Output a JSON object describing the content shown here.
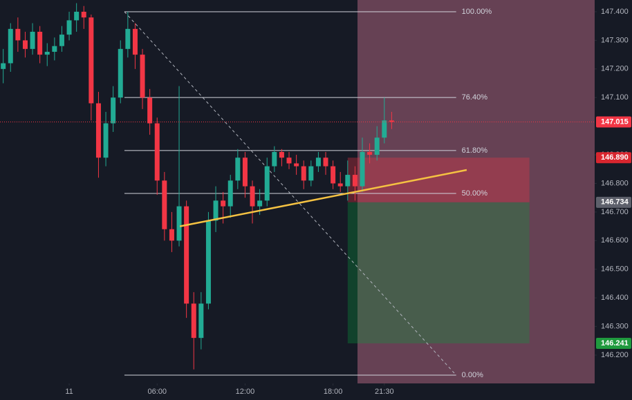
{
  "chart_data": {
    "type": "candlestick",
    "x": [
      -4.5,
      -4,
      -3.5,
      -3,
      -2.5,
      -2,
      -1.5,
      -1,
      -0.5,
      0,
      0.5,
      1,
      1.5,
      2,
      2.5,
      3,
      3.5,
      4,
      4.5,
      5,
      5.5,
      6,
      6.5,
      7,
      7.5,
      8,
      8.5,
      9,
      9.5,
      10,
      10.5,
      11,
      11.5,
      12,
      12.5,
      13,
      13.5,
      14,
      14.5,
      15,
      15.5,
      16,
      16.5,
      17,
      17.5,
      18,
      18.5,
      19,
      19.5,
      20,
      20.5,
      21,
      21.5,
      22
    ],
    "ohlc": [
      [
        147.2,
        147.27,
        147.15,
        147.22
      ],
      [
        147.22,
        147.36,
        147.19,
        147.34
      ],
      [
        147.34,
        147.38,
        147.26,
        147.3
      ],
      [
        147.3,
        147.33,
        147.24,
        147.27
      ],
      [
        147.27,
        147.36,
        147.25,
        147.33
      ],
      [
        147.33,
        147.35,
        147.22,
        147.25
      ],
      [
        147.25,
        147.29,
        147.21,
        147.26
      ],
      [
        147.26,
        147.31,
        147.23,
        147.28
      ],
      [
        147.28,
        147.35,
        147.26,
        147.32
      ],
      [
        147.32,
        147.4,
        147.3,
        147.37
      ],
      [
        147.37,
        147.43,
        147.33,
        147.4
      ],
      [
        147.4,
        147.42,
        147.34,
        147.38
      ],
      [
        147.38,
        147.39,
        147.02,
        147.08
      ],
      [
        147.08,
        147.12,
        146.82,
        146.89
      ],
      [
        146.89,
        147.05,
        146.86,
        147.01
      ],
      [
        147.01,
        147.14,
        146.98,
        147.1
      ],
      [
        147.1,
        147.3,
        147.08,
        147.27
      ],
      [
        147.27,
        147.4,
        147.24,
        147.34
      ],
      [
        147.34,
        147.36,
        147.2,
        147.25
      ],
      [
        147.25,
        147.27,
        147.06,
        147.1
      ],
      [
        147.1,
        147.13,
        146.97,
        147.01
      ],
      [
        147.01,
        147.03,
        146.76,
        146.81
      ],
      [
        146.81,
        146.84,
        146.6,
        146.64
      ],
      [
        146.64,
        146.7,
        146.56,
        146.6
      ],
      [
        146.6,
        147.14,
        146.58,
        146.72
      ],
      [
        146.72,
        146.74,
        146.33,
        146.38
      ],
      [
        146.38,
        146.42,
        146.15,
        146.26
      ],
      [
        146.26,
        146.42,
        146.22,
        146.38
      ],
      [
        146.38,
        146.7,
        146.36,
        146.67
      ],
      [
        146.67,
        146.79,
        146.63,
        146.74
      ],
      [
        146.74,
        146.77,
        146.66,
        146.72
      ],
      [
        146.72,
        146.83,
        146.68,
        146.81
      ],
      [
        146.81,
        146.92,
        146.78,
        146.89
      ],
      [
        146.89,
        146.91,
        146.75,
        146.79
      ],
      [
        146.79,
        146.81,
        146.66,
        146.72
      ],
      [
        146.72,
        146.78,
        146.69,
        146.74
      ],
      [
        146.74,
        146.89,
        146.72,
        146.86
      ],
      [
        146.86,
        146.93,
        146.84,
        146.91
      ],
      [
        146.91,
        146.92,
        146.86,
        146.89
      ],
      [
        146.89,
        146.91,
        146.85,
        146.87
      ],
      [
        146.87,
        146.9,
        146.83,
        146.86
      ],
      [
        146.86,
        146.88,
        146.78,
        146.81
      ],
      [
        146.81,
        146.88,
        146.79,
        146.86
      ],
      [
        146.86,
        146.91,
        146.84,
        146.89
      ],
      [
        146.89,
        146.91,
        146.83,
        146.86
      ],
      [
        146.86,
        146.88,
        146.78,
        146.8
      ],
      [
        146.8,
        146.84,
        146.77,
        146.79
      ],
      [
        146.79,
        146.88,
        146.74,
        146.83
      ],
      [
        146.83,
        146.86,
        146.74,
        146.79
      ],
      [
        146.79,
        146.96,
        146.77,
        146.91
      ],
      [
        146.91,
        146.94,
        146.87,
        146.9
      ],
      [
        146.9,
        147.0,
        146.88,
        146.96
      ],
      [
        146.96,
        147.1,
        146.94,
        147.02
      ],
      [
        147.02,
        147.05,
        146.99,
        147.015
      ]
    ],
    "up_color": "#22ab94",
    "down_color": "#f23645",
    "xlim": [
      -4.72,
      35.85
    ],
    "ylim": [
      146.101,
      147.441
    ],
    "xticks": [
      {
        "value": 0,
        "label": "11"
      },
      {
        "value": 6,
        "label": "06:00"
      },
      {
        "value": 12,
        "label": "12:00"
      },
      {
        "value": 18,
        "label": "18:00"
      },
      {
        "value": 21.5,
        "label": "21:30"
      }
    ],
    "yticks": [
      {
        "value": 146.2,
        "label": "146.200"
      },
      {
        "value": 146.3,
        "label": "146.300"
      },
      {
        "value": 146.4,
        "label": "146.400"
      },
      {
        "value": 146.5,
        "label": "146.500"
      },
      {
        "value": 146.6,
        "label": "146.600"
      },
      {
        "value": 146.7,
        "label": "146.700"
      },
      {
        "value": 146.8,
        "label": "146.800"
      },
      {
        "value": 146.9,
        "label": "146.900"
      },
      {
        "value": 147.1,
        "label": "147.100"
      },
      {
        "value": 147.2,
        "label": "147.200"
      },
      {
        "value": 147.3,
        "label": "147.300"
      },
      {
        "value": 147.4,
        "label": "147.400"
      }
    ],
    "fib": {
      "start": 3.77,
      "end": 26.4,
      "high": 147.4,
      "low": 146.13,
      "levels": [
        {
          "value": 100,
          "label": "100.00%"
        },
        {
          "value": 76.4,
          "label": "76.40%"
        },
        {
          "value": 61.8,
          "label": "61.80%"
        },
        {
          "value": 50,
          "label": "50.00%"
        },
        {
          "value": 0,
          "label": "0.00%"
        }
      ]
    },
    "trendline": {
      "x": [
        7.55,
        27.12
      ],
      "y": [
        146.65,
        146.847
      ],
      "color": "#f5c242"
    },
    "highlight_start": 19.67,
    "position": {
      "start": 19.0,
      "end": 31.4,
      "entry": 146.734,
      "stop": {
        "value": 146.89,
        "label": "146.890"
      },
      "target": 146.241
    }
  }
}
